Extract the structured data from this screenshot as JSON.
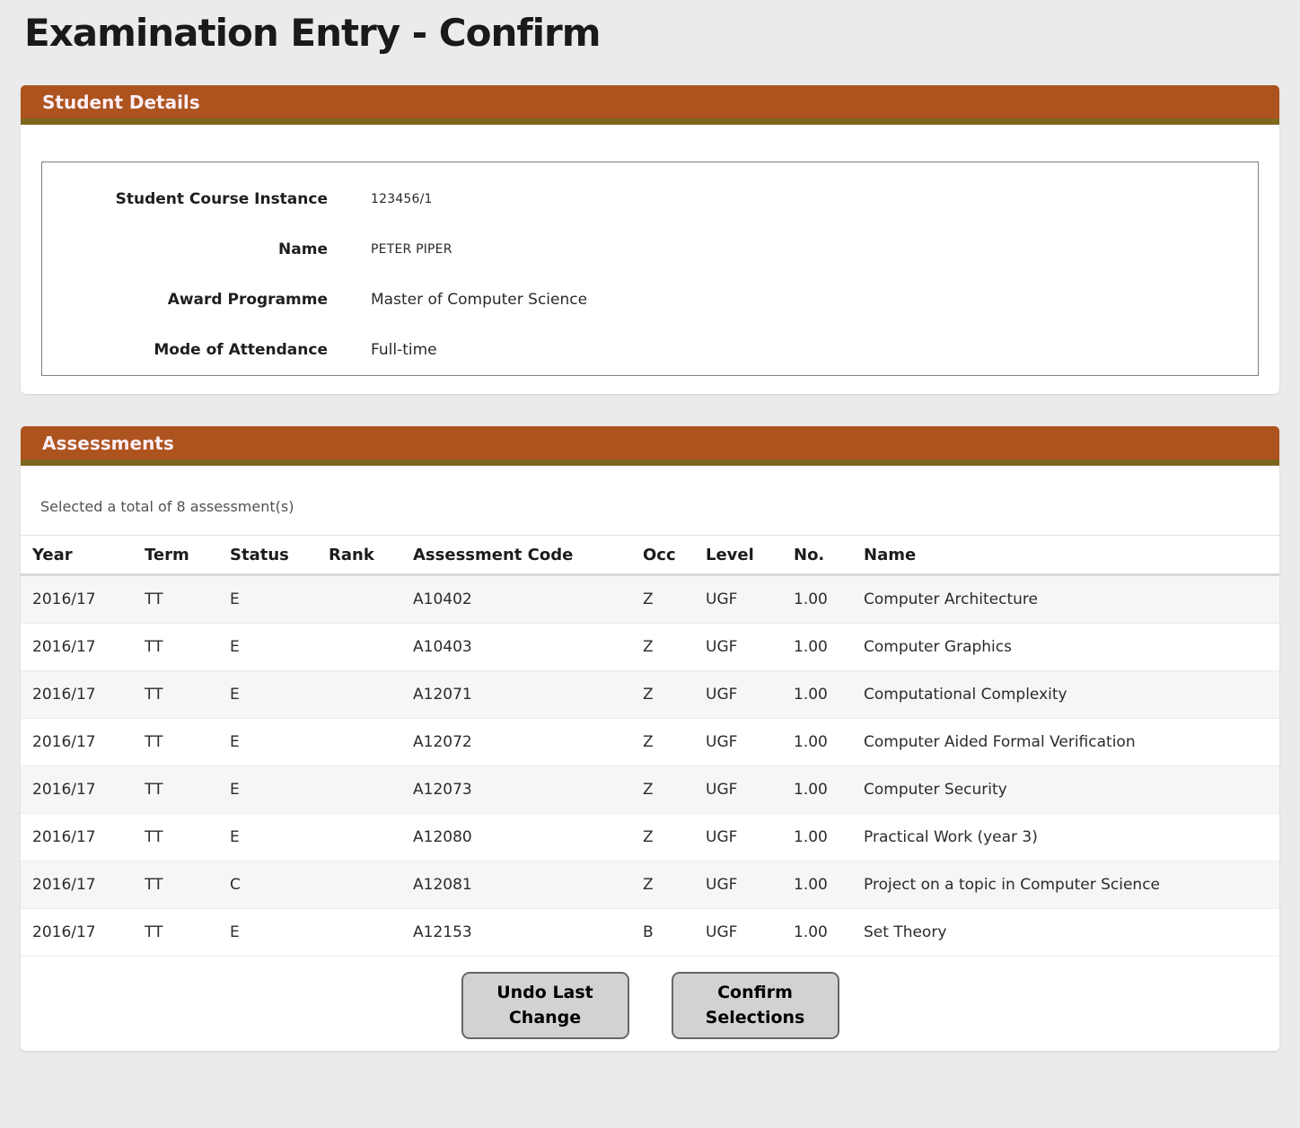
{
  "page": {
    "title": "Examination Entry - Confirm"
  },
  "student_details": {
    "section_title": "Student Details",
    "fields": [
      {
        "label": "Student Course Instance",
        "value": "123456/1"
      },
      {
        "label": "Name",
        "value": "PETER PIPER"
      },
      {
        "label": "Award Programme",
        "value": "Master of Computer Science"
      },
      {
        "label": "Mode of Attendance",
        "value": "Full-time"
      }
    ]
  },
  "assessments": {
    "section_title": "Assessments",
    "summary": "Selected a total of 8 assessment(s)",
    "columns": [
      "Year",
      "Term",
      "Status",
      "Rank",
      "Assessment Code",
      "Occ",
      "Level",
      "No.",
      "Name"
    ],
    "rows": [
      [
        "2016/17",
        "TT",
        "E",
        "",
        "A10402",
        "Z",
        "UGF",
        "1.00",
        "Computer Architecture"
      ],
      [
        "2016/17",
        "TT",
        "E",
        "",
        "A10403",
        "Z",
        "UGF",
        "1.00",
        "Computer Graphics"
      ],
      [
        "2016/17",
        "TT",
        "E",
        "",
        "A12071",
        "Z",
        "UGF",
        "1.00",
        "Computational Complexity"
      ],
      [
        "2016/17",
        "TT",
        "E",
        "",
        "A12072",
        "Z",
        "UGF",
        "1.00",
        "Computer Aided Formal Verification"
      ],
      [
        "2016/17",
        "TT",
        "E",
        "",
        "A12073",
        "Z",
        "UGF",
        "1.00",
        "Computer Security"
      ],
      [
        "2016/17",
        "TT",
        "E",
        "",
        "A12080",
        "Z",
        "UGF",
        "1.00",
        "Practical Work (year 3)"
      ],
      [
        "2016/17",
        "TT",
        "C",
        "",
        "A12081",
        "Z",
        "UGF",
        "1.00",
        "Project on a topic in Computer Science"
      ],
      [
        "2016/17",
        "TT",
        "E",
        "",
        "A12153",
        "B",
        "UGF",
        "1.00",
        "Set Theory"
      ]
    ]
  },
  "buttons": {
    "undo": "Undo Last Change",
    "confirm": "Confirm Selections"
  },
  "colors": {
    "section_header_bg": "#ad531e",
    "section_header_border": "#7d671f",
    "section_header_text": "#fdeff6",
    "page_bg": "#ebebeb",
    "button_bg": "#d2d2d2"
  }
}
